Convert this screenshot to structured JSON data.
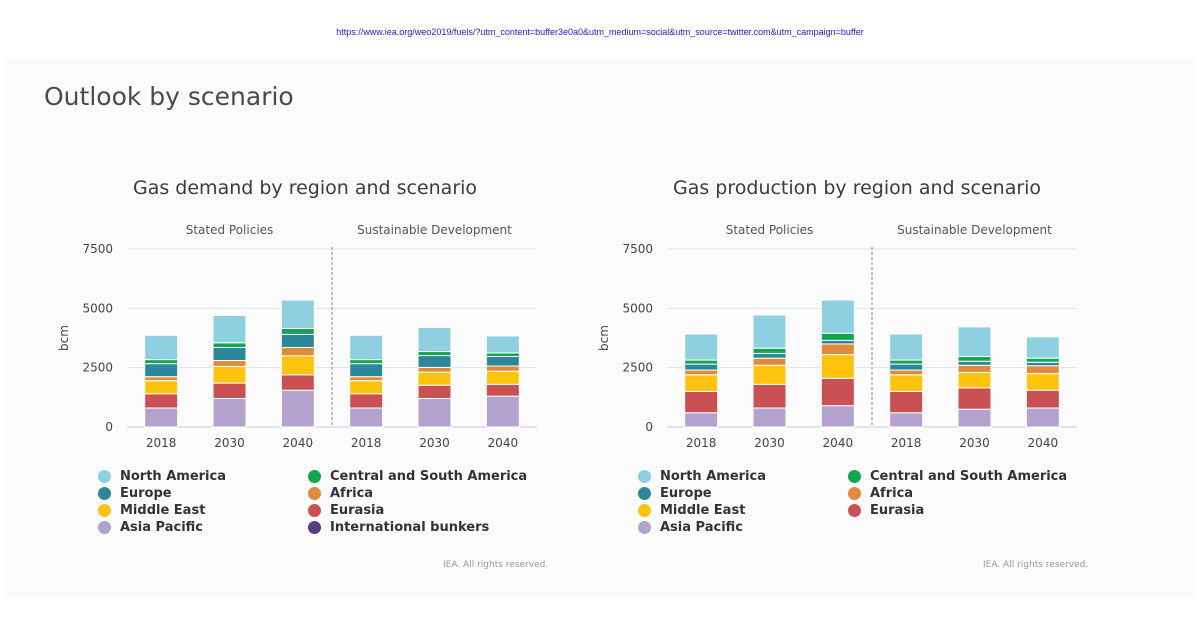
{
  "source_url": "https://www.iea.org/weo2019/fuels/?utm_content=buffer3e0a0&utm_medium=social&utm_source=twitter.com&utm_campaign=buffer",
  "page_title": "Outlook by scenario",
  "colors": {
    "North America": "#8fd0e0",
    "Europe": "#2b8799",
    "Middle East": "#fdc30f",
    "Asia Pacific": "#b3a2cc",
    "Central and South America": "#12a651",
    "Africa": "#df8b3b",
    "Eurasia": "#c95153",
    "International bunkers": "#5b3b86",
    "stack_separator": "#ffffff"
  },
  "chart_data": [
    {
      "type": "bar",
      "stacked": true,
      "title": "Gas demand by region and scenario",
      "ylabel": "bcm",
      "xlabel": "",
      "ylim": [
        0,
        7500
      ],
      "yticks": [
        0,
        2500,
        5000,
        7500
      ],
      "grid": true,
      "groups": [
        "Stated Policies",
        "Sustainable Development"
      ],
      "categories": [
        "2018",
        "2030",
        "2040",
        "2018",
        "2030",
        "2040"
      ],
      "series": [
        {
          "name": "Asia Pacific",
          "values": [
            800,
            1200,
            1550,
            800,
            1200,
            1300
          ]
        },
        {
          "name": "Eurasia",
          "values": [
            600,
            650,
            650,
            600,
            560,
            500
          ]
        },
        {
          "name": "Middle East",
          "values": [
            550,
            700,
            800,
            550,
            550,
            550
          ]
        },
        {
          "name": "Africa",
          "values": [
            170,
            250,
            350,
            170,
            200,
            220
          ]
        },
        {
          "name": "Europe",
          "values": [
            550,
            550,
            550,
            550,
            500,
            400
          ]
        },
        {
          "name": "Central and South America",
          "values": [
            170,
            200,
            250,
            170,
            170,
            150
          ]
        },
        {
          "name": "North America",
          "values": [
            1030,
            1150,
            1200,
            1030,
            1020,
            720
          ]
        },
        {
          "name": "International bunkers",
          "values": [
            10,
            20,
            40,
            10,
            20,
            30
          ]
        }
      ],
      "legend": [
        "North America",
        "Central and South America",
        "Europe",
        "Africa",
        "Middle East",
        "Eurasia",
        "Asia Pacific",
        "International bunkers"
      ],
      "credit": "IEA. All rights reserved."
    },
    {
      "type": "bar",
      "stacked": true,
      "title": "Gas production by region and scenario",
      "ylabel": "bcm",
      "xlabel": "",
      "ylim": [
        0,
        7500
      ],
      "yticks": [
        0,
        2500,
        5000,
        7500
      ],
      "grid": true,
      "groups": [
        "Stated Policies",
        "Sustainable Development"
      ],
      "categories": [
        "2018",
        "2030",
        "2040",
        "2018",
        "2030",
        "2040"
      ],
      "series": [
        {
          "name": "Asia Pacific",
          "values": [
            600,
            800,
            900,
            600,
            750,
            800
          ]
        },
        {
          "name": "Eurasia",
          "values": [
            900,
            1000,
            1150,
            900,
            900,
            750
          ]
        },
        {
          "name": "Middle East",
          "values": [
            700,
            800,
            1000,
            700,
            650,
            700
          ]
        },
        {
          "name": "Africa",
          "values": [
            200,
            300,
            450,
            200,
            300,
            330
          ]
        },
        {
          "name": "Europe",
          "values": [
            250,
            200,
            150,
            250,
            170,
            150
          ]
        },
        {
          "name": "Central and South America",
          "values": [
            170,
            220,
            300,
            170,
            200,
            170
          ]
        },
        {
          "name": "North America",
          "values": [
            1100,
            1400,
            1400,
            1100,
            1250,
            900
          ]
        }
      ],
      "legend": [
        "North America",
        "Central and South America",
        "Europe",
        "Africa",
        "Middle East",
        "Eurasia",
        "Asia Pacific"
      ],
      "credit": "IEA. All rights reserved."
    }
  ]
}
